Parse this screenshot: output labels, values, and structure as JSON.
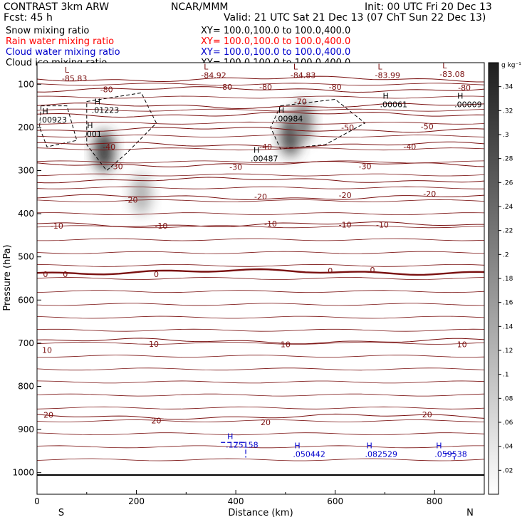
{
  "header": {
    "left1": "CONTRAST  3km ARW",
    "left2": "Fcst:    45 h",
    "center": "NCAR/MMM",
    "init": "Init: 00 UTC Fri 20 Dec 13",
    "valid": "Valid: 21 UTC Sat 21 Dec 13 (07 ChT Sun 22 Dec 13)"
  },
  "fields": [
    {
      "name": "Snow mixing ratio",
      "xy": "XY= 100.0,100.0 to 100.0,400.0",
      "color": "#000000"
    },
    {
      "name": "Rain water mixing ratio",
      "xy": "XY= 100.0,100.0 to 100.0,400.0",
      "color": "#ff0000"
    },
    {
      "name": "Cloud water mixing ratio",
      "xy": "XY= 100.0,100.0 to 100.0,400.0",
      "color": "#0000cc"
    },
    {
      "name": "Cloud ice mixing ratio",
      "xy": "XY= 100.0,100.0 to 100.0,400.0",
      "color": "#000000"
    }
  ],
  "colors": {
    "temperature": "#7a1010",
    "freezing": "#7a1010",
    "cloud_water": "#0000cc",
    "cloud_ice": "#000000",
    "snow_shade": "#404040"
  },
  "chart_data": {
    "type": "heatmap",
    "xlabel": "Distance (km)",
    "ylabel": "Pressure (hPa)",
    "xlim": [
      0,
      900
    ],
    "ylim": [
      1050,
      50
    ],
    "x_ticks": [
      0,
      200,
      400,
      600,
      800
    ],
    "y_ticks": [
      100,
      200,
      300,
      400,
      500,
      600,
      700,
      800,
      900,
      1000
    ],
    "left_end_label": "S",
    "right_end_label": "N",
    "colorbar": {
      "units": "g kg⁻¹",
      "levels": [
        0.02,
        0.04,
        0.06,
        0.08,
        0.1,
        0.12,
        0.14,
        0.16,
        0.18,
        0.2,
        0.22,
        0.24,
        0.26,
        0.28,
        0.3,
        0.32,
        0.34
      ],
      "level_labels": [
        ".02",
        ".04",
        ".06",
        ".08",
        ".1",
        ".12",
        ".14",
        ".16",
        ".18",
        ".2",
        ".22",
        ".24",
        ".26",
        ".28",
        ".3",
        ".32",
        ".34"
      ]
    },
    "temperature_contours": [
      {
        "value": -80,
        "p": 88
      },
      {
        "value": -80,
        "p": 112
      },
      {
        "value": -70,
        "p": 150
      },
      {
        "value": -60,
        "p": 170
      },
      {
        "value": -50,
        "p": 205
      },
      {
        "value": -40,
        "p": 240
      },
      {
        "value": -30,
        "p": 285
      },
      {
        "value": -20,
        "p": 322
      },
      {
        "value": -20,
        "p": 362
      },
      {
        "value": -10,
        "p": 425
      },
      {
        "value": 0,
        "p": 535
      },
      {
        "value": 10,
        "p": 695
      },
      {
        "value": 20,
        "p": 870
      }
    ],
    "temperature_labels": [
      {
        "text": "-80",
        "x": 140,
        "p": 112
      },
      {
        "text": "-80",
        "x": 460,
        "p": 106
      },
      {
        "text": "-80",
        "x": 600,
        "p": 106
      },
      {
        "text": "-80",
        "x": 860,
        "p": 108
      },
      {
        "text": "-80",
        "x": 380,
        "p": 106
      },
      {
        "text": "-70",
        "x": 530,
        "p": 140
      },
      {
        "text": "-50",
        "x": 625,
        "p": 200
      },
      {
        "text": "-50",
        "x": 785,
        "p": 198
      },
      {
        "text": "-40",
        "x": 145,
        "p": 245
      },
      {
        "text": "-40",
        "x": 460,
        "p": 245
      },
      {
        "text": "-40",
        "x": 750,
        "p": 245
      },
      {
        "text": "-30",
        "x": 160,
        "p": 290
      },
      {
        "text": "-30",
        "x": 400,
        "p": 292
      },
      {
        "text": "-30",
        "x": 660,
        "p": 290
      },
      {
        "text": "-20",
        "x": 190,
        "p": 368
      },
      {
        "text": "-20",
        "x": 450,
        "p": 360
      },
      {
        "text": "-20",
        "x": 620,
        "p": 357
      },
      {
        "text": "-20",
        "x": 790,
        "p": 354
      },
      {
        "text": "-10",
        "x": 40,
        "p": 428
      },
      {
        "text": "-10",
        "x": 250,
        "p": 428
      },
      {
        "text": "-10",
        "x": 470,
        "p": 423
      },
      {
        "text": "-10",
        "x": 620,
        "p": 425
      },
      {
        "text": "-10",
        "x": 695,
        "p": 425
      },
      {
        "text": "0",
        "x": 17,
        "p": 540
      },
      {
        "text": "0",
        "x": 57,
        "p": 540
      },
      {
        "text": "0",
        "x": 240,
        "p": 540
      },
      {
        "text": "0",
        "x": 590,
        "p": 532
      },
      {
        "text": "0",
        "x": 675,
        "p": 530
      },
      {
        "text": "10",
        "x": 20,
        "p": 716
      },
      {
        "text": "10",
        "x": 235,
        "p": 702
      },
      {
        "text": "10",
        "x": 500,
        "p": 703
      },
      {
        "text": "10",
        "x": 855,
        "p": 703
      },
      {
        "text": "20",
        "x": 23,
        "p": 866
      },
      {
        "text": "20",
        "x": 240,
        "p": 879
      },
      {
        "text": "20",
        "x": 460,
        "p": 883
      },
      {
        "text": "20",
        "x": 785,
        "p": 865
      }
    ],
    "pressure_extrema": [
      {
        "type": "L",
        "label": "-85.83",
        "x": 50,
        "p": 90
      },
      {
        "type": "L",
        "label": "-84.92",
        "x": 330,
        "p": 82
      },
      {
        "type": "L",
        "label": "-84.83",
        "x": 510,
        "p": 82
      },
      {
        "type": "L",
        "label": "-83.99",
        "x": 680,
        "p": 82
      },
      {
        "type": "L",
        "label": "-83.08",
        "x": 810,
        "p": 80
      }
    ],
    "ice_extrema": [
      {
        "type": "H",
        "label": ".01223",
        "x": 110,
        "p": 163
      },
      {
        "type": "H",
        "label": ".00923",
        "x": 5,
        "p": 185
      },
      {
        "type": "H",
        "label": ".001",
        "x": 95,
        "p": 218
      },
      {
        "type": "H",
        "label": ".00984",
        "x": 480,
        "p": 183
      },
      {
        "type": "H",
        "label": ".00487",
        "x": 430,
        "p": 275
      },
      {
        "type": "H",
        "label": ".00061",
        "x": 690,
        "p": 150
      },
      {
        "type": "H",
        "label": ".00009",
        "x": 840,
        "p": 150
      }
    ],
    "cloud_water_extrema": [
      {
        "type": "H",
        "label": ".125158",
        "x": 380,
        "p": 939
      },
      {
        "type": "H",
        "label": ".050442",
        "x": 515,
        "p": 960
      },
      {
        "type": "H",
        "label": ".082529",
        "x": 660,
        "p": 960
      },
      {
        "type": "H",
        "label": ".059538",
        "x": 800,
        "p": 960
      }
    ],
    "snow_maxima": [
      {
        "x": 135,
        "p": 255,
        "value": 0.3
      },
      {
        "x": 210,
        "p": 355,
        "value": 0.12
      },
      {
        "x": 510,
        "p": 220,
        "value": 0.28
      },
      {
        "x": 535,
        "p": 185,
        "value": 0.2
      }
    ]
  }
}
